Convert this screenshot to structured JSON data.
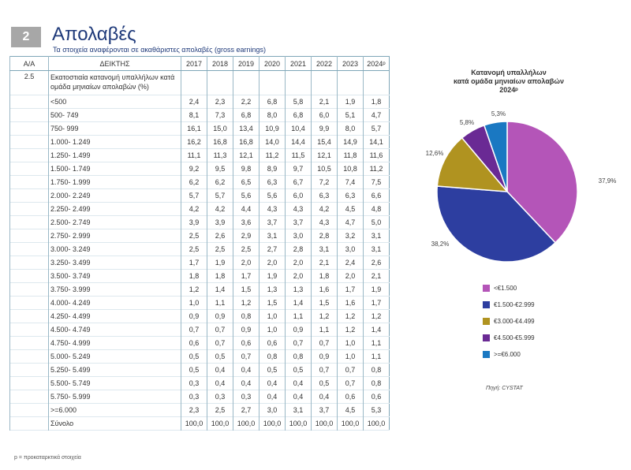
{
  "header": {
    "badge": "2",
    "title": "Απολαβές",
    "subtitle": "Τα στοιχεία αναφέρονται σε ακαθάριστες απολαβές (gross earnings)"
  },
  "table": {
    "columns": [
      "Α/Α",
      "ΔΕΙΚΤΗΣ",
      "2017",
      "2018",
      "2019",
      "2020",
      "2021",
      "2022",
      "2023",
      "2024ᵖ"
    ],
    "section": {
      "id": "2.5",
      "label": "Εκατοστιαία κατανομή υπαλλήλων κατά ομάδα μηνιαίων απολαβών (%)"
    },
    "rows": [
      [
        "<500",
        "2,4",
        "2,3",
        "2,2",
        "6,8",
        "5,8",
        "2,1",
        "1,9",
        "1,8"
      ],
      [
        "500- 749",
        "8,1",
        "7,3",
        "6,8",
        "8,0",
        "6,8",
        "6,0",
        "5,1",
        "4,7"
      ],
      [
        "750- 999",
        "16,1",
        "15,0",
        "13,4",
        "10,9",
        "10,4",
        "9,9",
        "8,0",
        "5,7"
      ],
      [
        "1.000- 1.249",
        "16,2",
        "16,8",
        "16,8",
        "14,0",
        "14,4",
        "15,4",
        "14,9",
        "14,1"
      ],
      [
        "1.250- 1.499",
        "11,1",
        "11,3",
        "12,1",
        "11,2",
        "11,5",
        "12,1",
        "11,8",
        "11,6"
      ],
      [
        "1.500- 1.749",
        "9,2",
        "9,5",
        "9,8",
        "8,9",
        "9,7",
        "10,5",
        "10,8",
        "11,2"
      ],
      [
        "1.750- 1.999",
        "6,2",
        "6,2",
        "6,5",
        "6,3",
        "6,7",
        "7,2",
        "7,4",
        "7,5"
      ],
      [
        "2.000- 2.249",
        "5,7",
        "5,7",
        "5,6",
        "5,6",
        "6,0",
        "6,3",
        "6,3",
        "6,6"
      ],
      [
        "2.250- 2.499",
        "4,2",
        "4,2",
        "4,4",
        "4,3",
        "4,3",
        "4,2",
        "4,5",
        "4,8"
      ],
      [
        "2.500- 2.749",
        "3,9",
        "3,9",
        "3,6",
        "3,7",
        "3,7",
        "4,3",
        "4,7",
        "5,0"
      ],
      [
        "2.750- 2.999",
        "2,5",
        "2,6",
        "2,9",
        "3,1",
        "3,0",
        "2,8",
        "3,2",
        "3,1"
      ],
      [
        "3.000- 3.249",
        "2,5",
        "2,5",
        "2,5",
        "2,7",
        "2,8",
        "3,1",
        "3,0",
        "3,1"
      ],
      [
        "3.250- 3.499",
        "1,7",
        "1,9",
        "2,0",
        "2,0",
        "2,0",
        "2,1",
        "2,4",
        "2,6"
      ],
      [
        "3.500- 3.749",
        "1,8",
        "1,8",
        "1,7",
        "1,9",
        "2,0",
        "1,8",
        "2,0",
        "2,1"
      ],
      [
        "3.750- 3.999",
        "1,2",
        "1,4",
        "1,5",
        "1,3",
        "1,3",
        "1,6",
        "1,7",
        "1,9"
      ],
      [
        "4.000- 4.249",
        "1,0",
        "1,1",
        "1,2",
        "1,5",
        "1,4",
        "1,5",
        "1,6",
        "1,7"
      ],
      [
        "4.250- 4.499",
        "0,9",
        "0,9",
        "0,8",
        "1,0",
        "1,1",
        "1,2",
        "1,2",
        "1,2"
      ],
      [
        "4.500- 4.749",
        "0,7",
        "0,7",
        "0,9",
        "1,0",
        "0,9",
        "1,1",
        "1,2",
        "1,4"
      ],
      [
        "4.750- 4.999",
        "0,6",
        "0,7",
        "0,6",
        "0,6",
        "0,7",
        "0,7",
        "1,0",
        "1,1"
      ],
      [
        "5.000- 5.249",
        "0,5",
        "0,5",
        "0,7",
        "0,8",
        "0,8",
        "0,9",
        "1,0",
        "1,1"
      ],
      [
        "5.250- 5.499",
        "0,5",
        "0,4",
        "0,4",
        "0,5",
        "0,5",
        "0,7",
        "0,7",
        "0,8"
      ],
      [
        "5.500- 5.749",
        "0,3",
        "0,4",
        "0,4",
        "0,4",
        "0,4",
        "0,5",
        "0,7",
        "0,8"
      ],
      [
        "5.750- 5.999",
        "0,3",
        "0,3",
        "0,3",
        "0,4",
        "0,4",
        "0,4",
        "0,6",
        "0,6"
      ],
      [
        ">=6.000",
        "2,3",
        "2,5",
        "2,7",
        "3,0",
        "3,1",
        "3,7",
        "4,5",
        "5,3"
      ]
    ],
    "total": [
      "Σύνολο",
      "100,0",
      "100,0",
      "100,0",
      "100,0",
      "100,0",
      "100,0",
      "100,0",
      "100,0"
    ]
  },
  "footnote": "p = προκαταρκτικά στοιχεία",
  "chart_data": {
    "type": "pie",
    "title": [
      "Κατανομή υπαλλήλων",
      "κατά ομάδα μηνιαίων απολαβών",
      "2024ᵖ"
    ],
    "slices": [
      {
        "name": "<€1.500",
        "value": 37.9,
        "label": "37,9%",
        "color": "#b455b8"
      },
      {
        "name": "€1.500-€2.999",
        "value": 38.2,
        "label": "38,2%",
        "color": "#2d3ea0"
      },
      {
        "name": "€3.000-€4.499",
        "value": 12.6,
        "label": "12,6%",
        "color": "#b09320"
      },
      {
        "name": "€4.500-€5.999",
        "value": 5.8,
        "label": "5,8%",
        "color": "#6a2a94"
      },
      {
        "name": ">=€6.000",
        "value": 5.3,
        "label": "5,3%",
        "color": "#1a78c2"
      }
    ],
    "start": "12 o'clock",
    "direction": "clockwise",
    "legend": "bottom"
  },
  "source": "Πηγή: CYSTAT"
}
